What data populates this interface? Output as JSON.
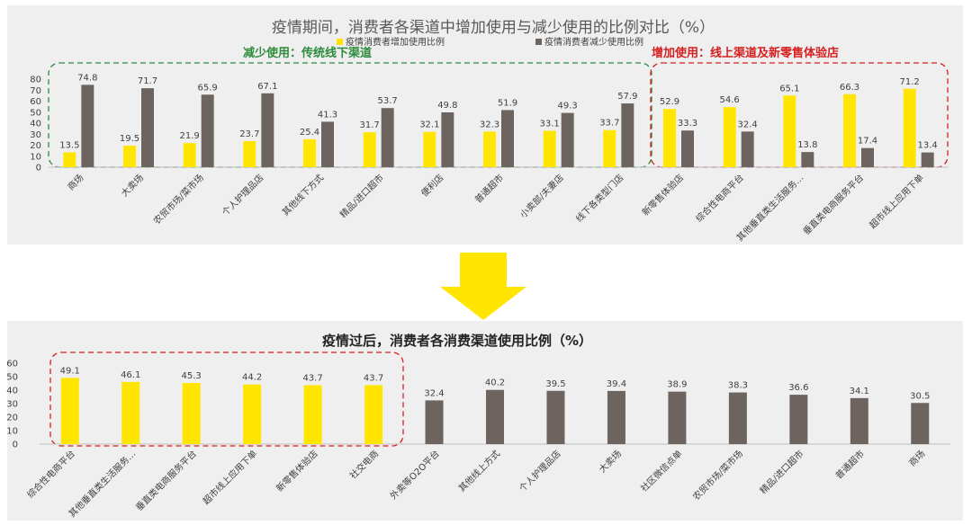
{
  "chart_data": [
    {
      "type": "bar",
      "title": "疫情期间，消费者各渠道中增加使用与减少使用的比例对比（%）",
      "categories": [
        "商场",
        "大卖场",
        "农贸市场/菜市场",
        "个人护理品店",
        "其他线下方式",
        "精品/进口超市",
        "便利店",
        "普通超市",
        "小卖部/夫妻店",
        "线下各类型门店",
        "新零售体验店",
        "综合性电商平台",
        "其他垂直类生活服务…",
        "垂直类电商服务平台",
        "超市线上应用下单"
      ],
      "series": [
        {
          "name": "疫情消费者增加使用比例",
          "color": "#ffe500",
          "values": [
            13.5,
            19.5,
            21.9,
            23.7,
            25.4,
            31.7,
            32.1,
            32.3,
            33.1,
            33.7,
            52.9,
            54.6,
            65.1,
            66.3,
            71.2
          ]
        },
        {
          "name": "疫情消费者减少使用比例",
          "color": "#6d6460",
          "values": [
            74.8,
            71.7,
            65.9,
            67.1,
            41.3,
            53.7,
            49.8,
            51.9,
            49.3,
            57.9,
            33.3,
            32.4,
            13.8,
            17.4,
            13.4
          ]
        }
      ],
      "yticks": [
        0,
        10,
        20,
        30,
        40,
        50,
        60,
        70,
        80
      ],
      "ylim": [
        0,
        80
      ],
      "groups": [
        {
          "label": "减少使用：传统线下渠道",
          "color": "#2e8b3d",
          "from": 0,
          "to": 9
        },
        {
          "label": "增加使用：线上渠道及新零售体验店",
          "color": "#d61f1f",
          "from": 10,
          "to": 14
        }
      ],
      "legend_position": "top"
    },
    {
      "type": "bar",
      "title": "疫情过后，消费者各消费渠道使用比例（%）",
      "categories": [
        "综合性电商平台",
        "其他垂直类生活服务…",
        "垂直类电商服务平台",
        "超市线上应用下单",
        "新零售体验店",
        "社交电商",
        "外卖等O2O平台",
        "其他线上方式",
        "个人护理品店",
        "大卖场",
        "社区微信点单",
        "农贸市场/菜市场",
        "精品/进口超市",
        "普通超市",
        "商场"
      ],
      "values": [
        49.1,
        46.1,
        45.3,
        44.2,
        43.7,
        43.7,
        32.4,
        40.2,
        39.5,
        39.4,
        38.9,
        38.3,
        36.6,
        34.1,
        30.5
      ],
      "highlight_count": 6,
      "highlight_color": "#ffe500",
      "base_color": "#6d6460",
      "yticks": [
        0,
        10,
        20,
        30,
        40,
        50,
        60
      ],
      "ylim": [
        0,
        60
      ]
    }
  ],
  "colors": {
    "accent": "#ffe500",
    "bar_gray": "#6d6460",
    "arrow": "#ffe500"
  }
}
